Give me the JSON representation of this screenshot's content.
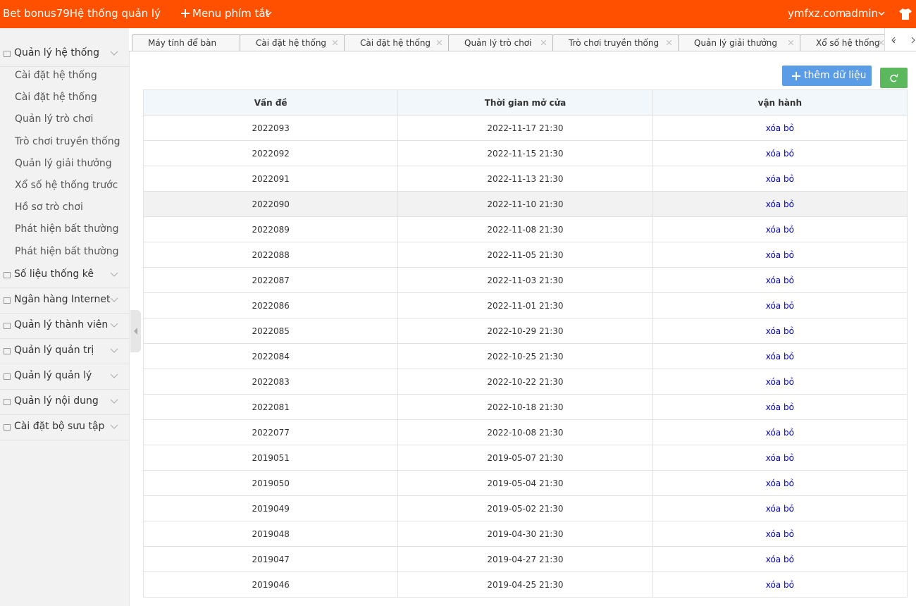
{
  "header": {
    "brand": "Bet bonus79Hệ thống quản lý",
    "menu": "Menu phím tắt",
    "site": "ymfxz.com",
    "user": "admin"
  },
  "tabs": [
    {
      "label": "Máy tính để bàn"
    },
    {
      "label": "Cài đặt hệ thống",
      "closable": true
    },
    {
      "label": "Cài đặt hệ thống",
      "closable": true
    },
    {
      "label": "Quản lý trò chơi",
      "closable": true
    },
    {
      "label": "Trò chơi truyền thống",
      "closable": true
    },
    {
      "label": "Quản lý giải thưởng",
      "closable": true
    },
    {
      "label": "Xổ số hệ thống",
      "closable": true
    }
  ],
  "sidebar": {
    "groups": [
      {
        "label": "Quản lý hệ thống",
        "items": [
          "Cài đặt hệ thống",
          "Cài đặt hệ thống",
          "Quản lý trò chơi",
          "Trò chơi truyền thống",
          "Quản lý giải thưởng",
          "Xổ số hệ thống trước",
          "Hồ sơ trò chơi",
          "Phát hiện bất thường",
          "Phát hiện bất thường"
        ]
      },
      {
        "label": "Số liệu thống kê"
      },
      {
        "label": "Ngân hàng Internet"
      },
      {
        "label": "Quản lý thành viên"
      },
      {
        "label": "Quản lý quản trị"
      },
      {
        "label": "Quản lý quản lý"
      },
      {
        "label": "Quản lý nội dung"
      },
      {
        "label": "Cài đặt bộ sưu tập"
      }
    ]
  },
  "toolbar": {
    "add": "thêm dữ liệu"
  },
  "table": {
    "columns": [
      "Vấn đề",
      "Thời gian mở cửa",
      "vận hành"
    ],
    "highlighted_row": 3,
    "rows": [
      [
        "2022093",
        "2022-11-17 21:30",
        "xóa bỏ"
      ],
      [
        "2022092",
        "2022-11-15 21:30",
        "xóa bỏ"
      ],
      [
        "2022091",
        "2022-11-13 21:30",
        "xóa bỏ"
      ],
      [
        "2022090",
        "2022-11-10 21:30",
        "xóa bỏ"
      ],
      [
        "2022089",
        "2022-11-08 21:30",
        "xóa bỏ"
      ],
      [
        "2022088",
        "2022-11-05 21:30",
        "xóa bỏ"
      ],
      [
        "2022087",
        "2022-11-03 21:30",
        "xóa bỏ"
      ],
      [
        "2022086",
        "2022-11-01 21:30",
        "xóa bỏ"
      ],
      [
        "2022085",
        "2022-10-29 21:30",
        "xóa bỏ"
      ],
      [
        "2022084",
        "2022-10-25 21:30",
        "xóa bỏ"
      ],
      [
        "2022083",
        "2022-10-22 21:30",
        "xóa bỏ"
      ],
      [
        "2022081",
        "2022-10-18 21:30",
        "xóa bỏ"
      ],
      [
        "2022077",
        "2022-10-08 21:30",
        "xóa bỏ"
      ],
      [
        "2019051",
        "2019-05-07 21:30",
        "xóa bỏ"
      ],
      [
        "2019050",
        "2019-05-04 21:30",
        "xóa bỏ"
      ],
      [
        "2019049",
        "2019-05-02 21:30",
        "xóa bỏ"
      ],
      [
        "2019048",
        "2019-04-30 21:30",
        "xóa bỏ"
      ],
      [
        "2019047",
        "2019-04-27 21:30",
        "xóa bỏ"
      ],
      [
        "2019046",
        "2019-04-25 21:30",
        "xóa bỏ"
      ]
    ]
  }
}
